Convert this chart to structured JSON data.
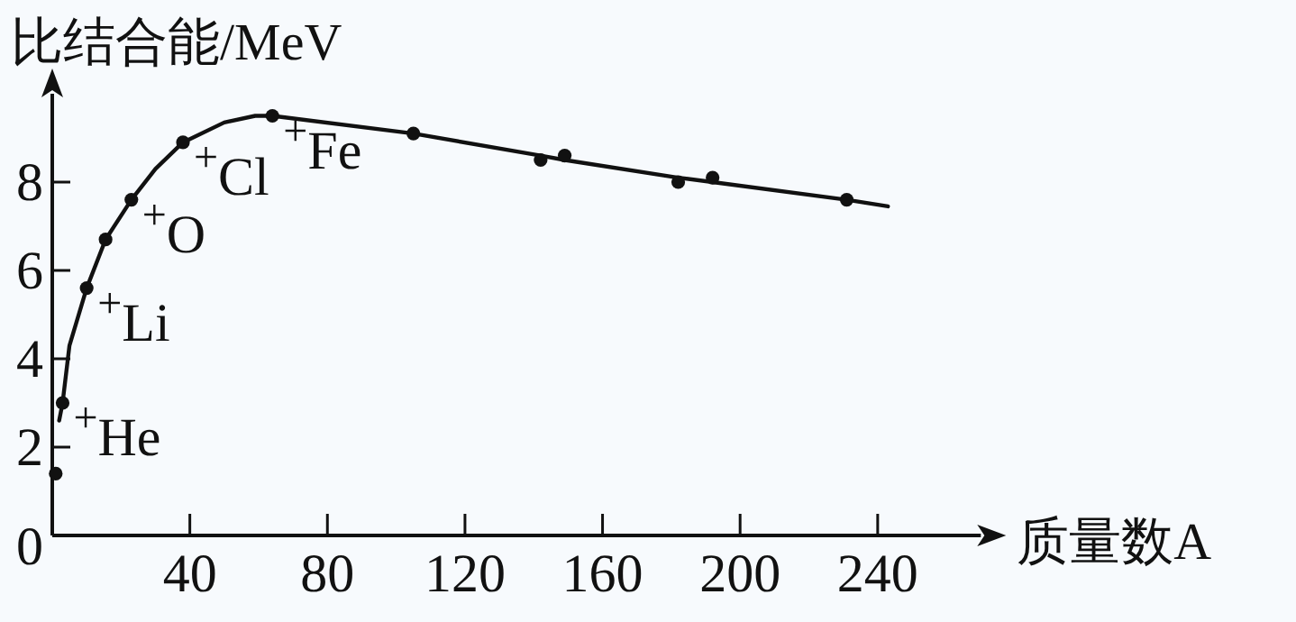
{
  "chart_data": {
    "type": "line",
    "ylabel": "比结合能/MeV",
    "xlabel": "质量数A",
    "xlim": [
      0,
      270
    ],
    "ylim": [
      0,
      10
    ],
    "xticks": [
      40,
      80,
      120,
      160,
      200,
      240
    ],
    "yticks": [
      0,
      2,
      4,
      6,
      8
    ],
    "grid": false,
    "series": [
      {
        "color": "#111111",
        "marker": "none",
        "line_style": "solid",
        "x": [
          2,
          3,
          5,
          10,
          15.5,
          23,
          30,
          38,
          50,
          59,
          64,
          105,
          142,
          149,
          182,
          192,
          231,
          243
        ],
        "values": [
          2.6,
          3,
          4.3,
          5.6,
          6.7,
          7.6,
          8.3,
          8.9,
          9.35,
          9.5,
          9.5,
          9.1,
          8.6,
          8.5,
          8.1,
          8.0,
          7.6,
          7.45
        ]
      },
      {
        "type": "scatter",
        "color": "#111111",
        "marker": "circle",
        "x": [
          1,
          3,
          10,
          15.5,
          23,
          38,
          64,
          105,
          142,
          149,
          182,
          192,
          231
        ],
        "values": [
          1.4,
          3,
          5.6,
          6.7,
          7.6,
          8.9,
          9.5,
          9.1,
          8.5,
          8.6,
          8.0,
          8.1,
          7.6
        ]
      }
    ],
    "annotations": [
      {
        "text": "$^{+}$He",
        "x": 3,
        "y": 3
      },
      {
        "text": "$^{+}$Li",
        "x": 10,
        "y": 5.6
      },
      {
        "text": "$^{+}$O",
        "x": 23,
        "y": 7.6
      },
      {
        "text": "$^{+}$Cl",
        "x": 38,
        "y": 8.9
      },
      {
        "text": "$^{+}$Fe",
        "x": 64,
        "y": 9.5
      }
    ]
  }
}
